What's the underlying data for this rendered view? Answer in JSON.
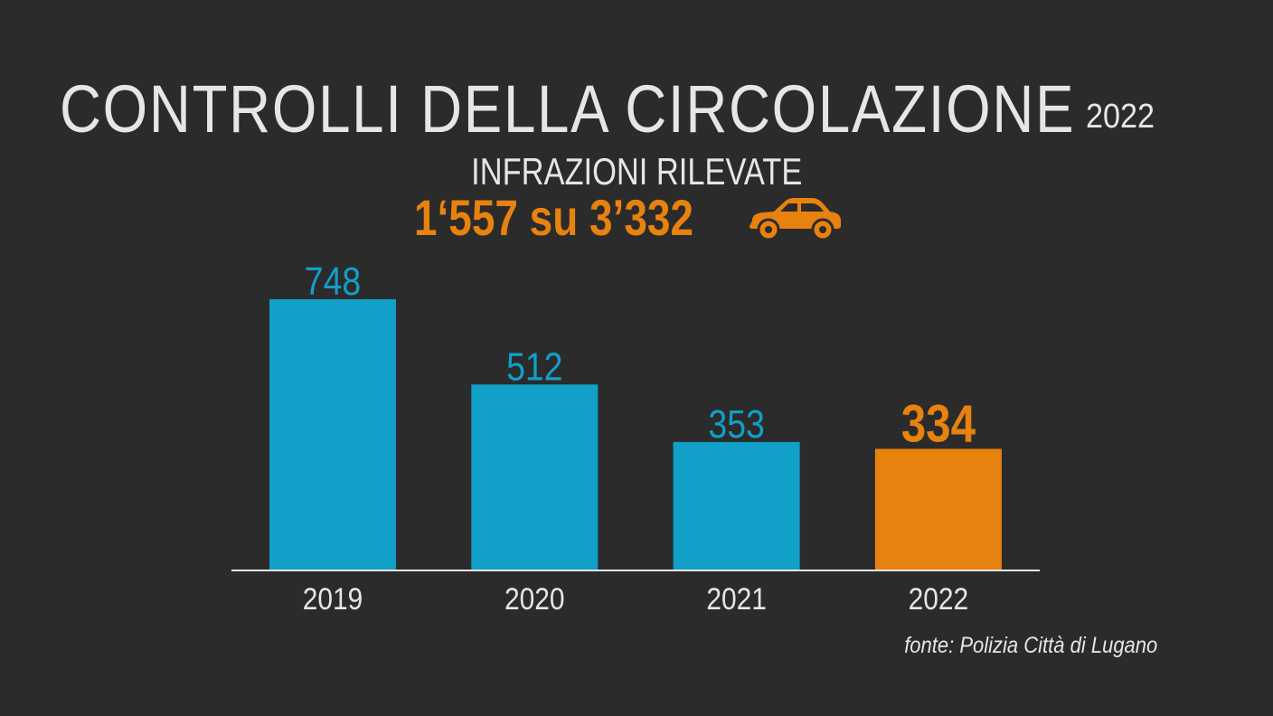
{
  "header": {
    "title": "CONTROLLI DELLA CIRCOLAZIONE",
    "year": "2022",
    "subtitle": "INFRAZIONI RILEVATE",
    "highlight": "1‘557 su 3’332",
    "icon": "car-icon"
  },
  "colors": {
    "background": "#2b2b2b",
    "bar": "#10a0c8",
    "highlight": "#e8820f",
    "text": "#e6e6e6"
  },
  "chart_data": {
    "type": "bar",
    "categories": [
      "2019",
      "2020",
      "2021",
      "2022"
    ],
    "values": [
      748,
      512,
      353,
      334
    ],
    "value_labels": [
      "748",
      "512",
      "353",
      "334"
    ],
    "highlighted_category": "2022",
    "ylim": [
      0,
      748
    ],
    "grid": false,
    "legend": "none"
  },
  "footer": {
    "source": "fonte: Polizia Città di Lugano"
  }
}
